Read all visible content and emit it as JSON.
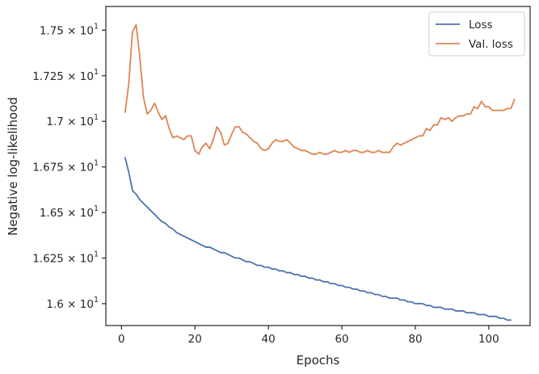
{
  "chart_data": {
    "type": "line",
    "title": "",
    "xlabel": "Epochs",
    "ylabel": "Negative log-likelihood",
    "xlim": [
      -4.25,
      111.25
    ],
    "ylim": [
      15.88,
      17.63
    ],
    "grid": false,
    "legend_position": "top-right",
    "x_ticks": [
      0,
      20,
      40,
      60,
      80,
      100
    ],
    "x_tick_labels": [
      "0",
      "20",
      "40",
      "60",
      "80",
      "100"
    ],
    "y_ticks": [
      16.0,
      16.25,
      16.5,
      16.75,
      17.0,
      17.25,
      17.5
    ],
    "y_tick_labels": [
      {
        "mantissa": "1.6",
        "exp": "1"
      },
      {
        "mantissa": "1.625",
        "exp": "1"
      },
      {
        "mantissa": "1.65",
        "exp": "1"
      },
      {
        "mantissa": "1.675",
        "exp": "1"
      },
      {
        "mantissa": "1.7",
        "exp": "1"
      },
      {
        "mantissa": "1.725",
        "exp": "1"
      },
      {
        "mantissa": "1.75",
        "exp": "1"
      }
    ],
    "series": [
      {
        "name": "Loss",
        "color": "#4c72b0",
        "values": [
          16.8,
          16.72,
          16.62,
          16.6,
          16.57,
          16.55,
          16.53,
          16.51,
          16.49,
          16.47,
          16.45,
          16.44,
          16.42,
          16.41,
          16.39,
          16.38,
          16.37,
          16.36,
          16.35,
          16.34,
          16.33,
          16.32,
          16.31,
          16.31,
          16.3,
          16.29,
          16.28,
          16.28,
          16.27,
          16.26,
          16.25,
          16.25,
          16.24,
          16.23,
          16.23,
          16.22,
          16.21,
          16.21,
          16.2,
          16.2,
          16.19,
          16.19,
          16.18,
          16.18,
          16.17,
          16.17,
          16.16,
          16.16,
          16.15,
          16.15,
          16.14,
          16.14,
          16.13,
          16.13,
          16.12,
          16.12,
          16.11,
          16.11,
          16.1,
          16.1,
          16.09,
          16.09,
          16.08,
          16.08,
          16.07,
          16.07,
          16.06,
          16.06,
          16.05,
          16.05,
          16.04,
          16.04,
          16.03,
          16.03,
          16.03,
          16.02,
          16.02,
          16.01,
          16.01,
          16.0,
          16.0,
          16.0,
          15.99,
          15.99,
          15.98,
          15.98,
          15.98,
          15.97,
          15.97,
          15.97,
          15.96,
          15.96,
          15.96,
          15.95,
          15.95,
          15.95,
          15.94,
          15.94,
          15.94,
          15.93,
          15.93,
          15.93,
          15.92,
          15.92,
          15.91,
          15.91
        ]
      },
      {
        "name": "Val. loss",
        "color": "#dd8452",
        "values": [
          17.05,
          17.21,
          17.49,
          17.53,
          17.35,
          17.13,
          17.04,
          17.06,
          17.1,
          17.05,
          17.01,
          17.03,
          16.96,
          16.91,
          16.92,
          16.91,
          16.9,
          16.92,
          16.92,
          16.84,
          16.82,
          16.86,
          16.88,
          16.85,
          16.9,
          16.97,
          16.94,
          16.87,
          16.88,
          16.93,
          16.97,
          16.97,
          16.94,
          16.93,
          16.91,
          16.89,
          16.88,
          16.85,
          16.84,
          16.85,
          16.88,
          16.9,
          16.89,
          16.89,
          16.9,
          16.88,
          16.86,
          16.85,
          16.84,
          16.84,
          16.83,
          16.82,
          16.82,
          16.83,
          16.82,
          16.82,
          16.83,
          16.84,
          16.83,
          16.83,
          16.84,
          16.83,
          16.84,
          16.84,
          16.83,
          16.83,
          16.84,
          16.83,
          16.83,
          16.84,
          16.83,
          16.83,
          16.83,
          16.86,
          16.88,
          16.87,
          16.88,
          16.89,
          16.9,
          16.91,
          16.92,
          16.92,
          16.96,
          16.95,
          16.98,
          16.98,
          17.02,
          17.01,
          17.02,
          17.0,
          17.02,
          17.03,
          17.03,
          17.04,
          17.04,
          17.08,
          17.07,
          17.11,
          17.08,
          17.08,
          17.06,
          17.06,
          17.06,
          17.06,
          17.07,
          17.07,
          17.12
        ]
      }
    ]
  }
}
